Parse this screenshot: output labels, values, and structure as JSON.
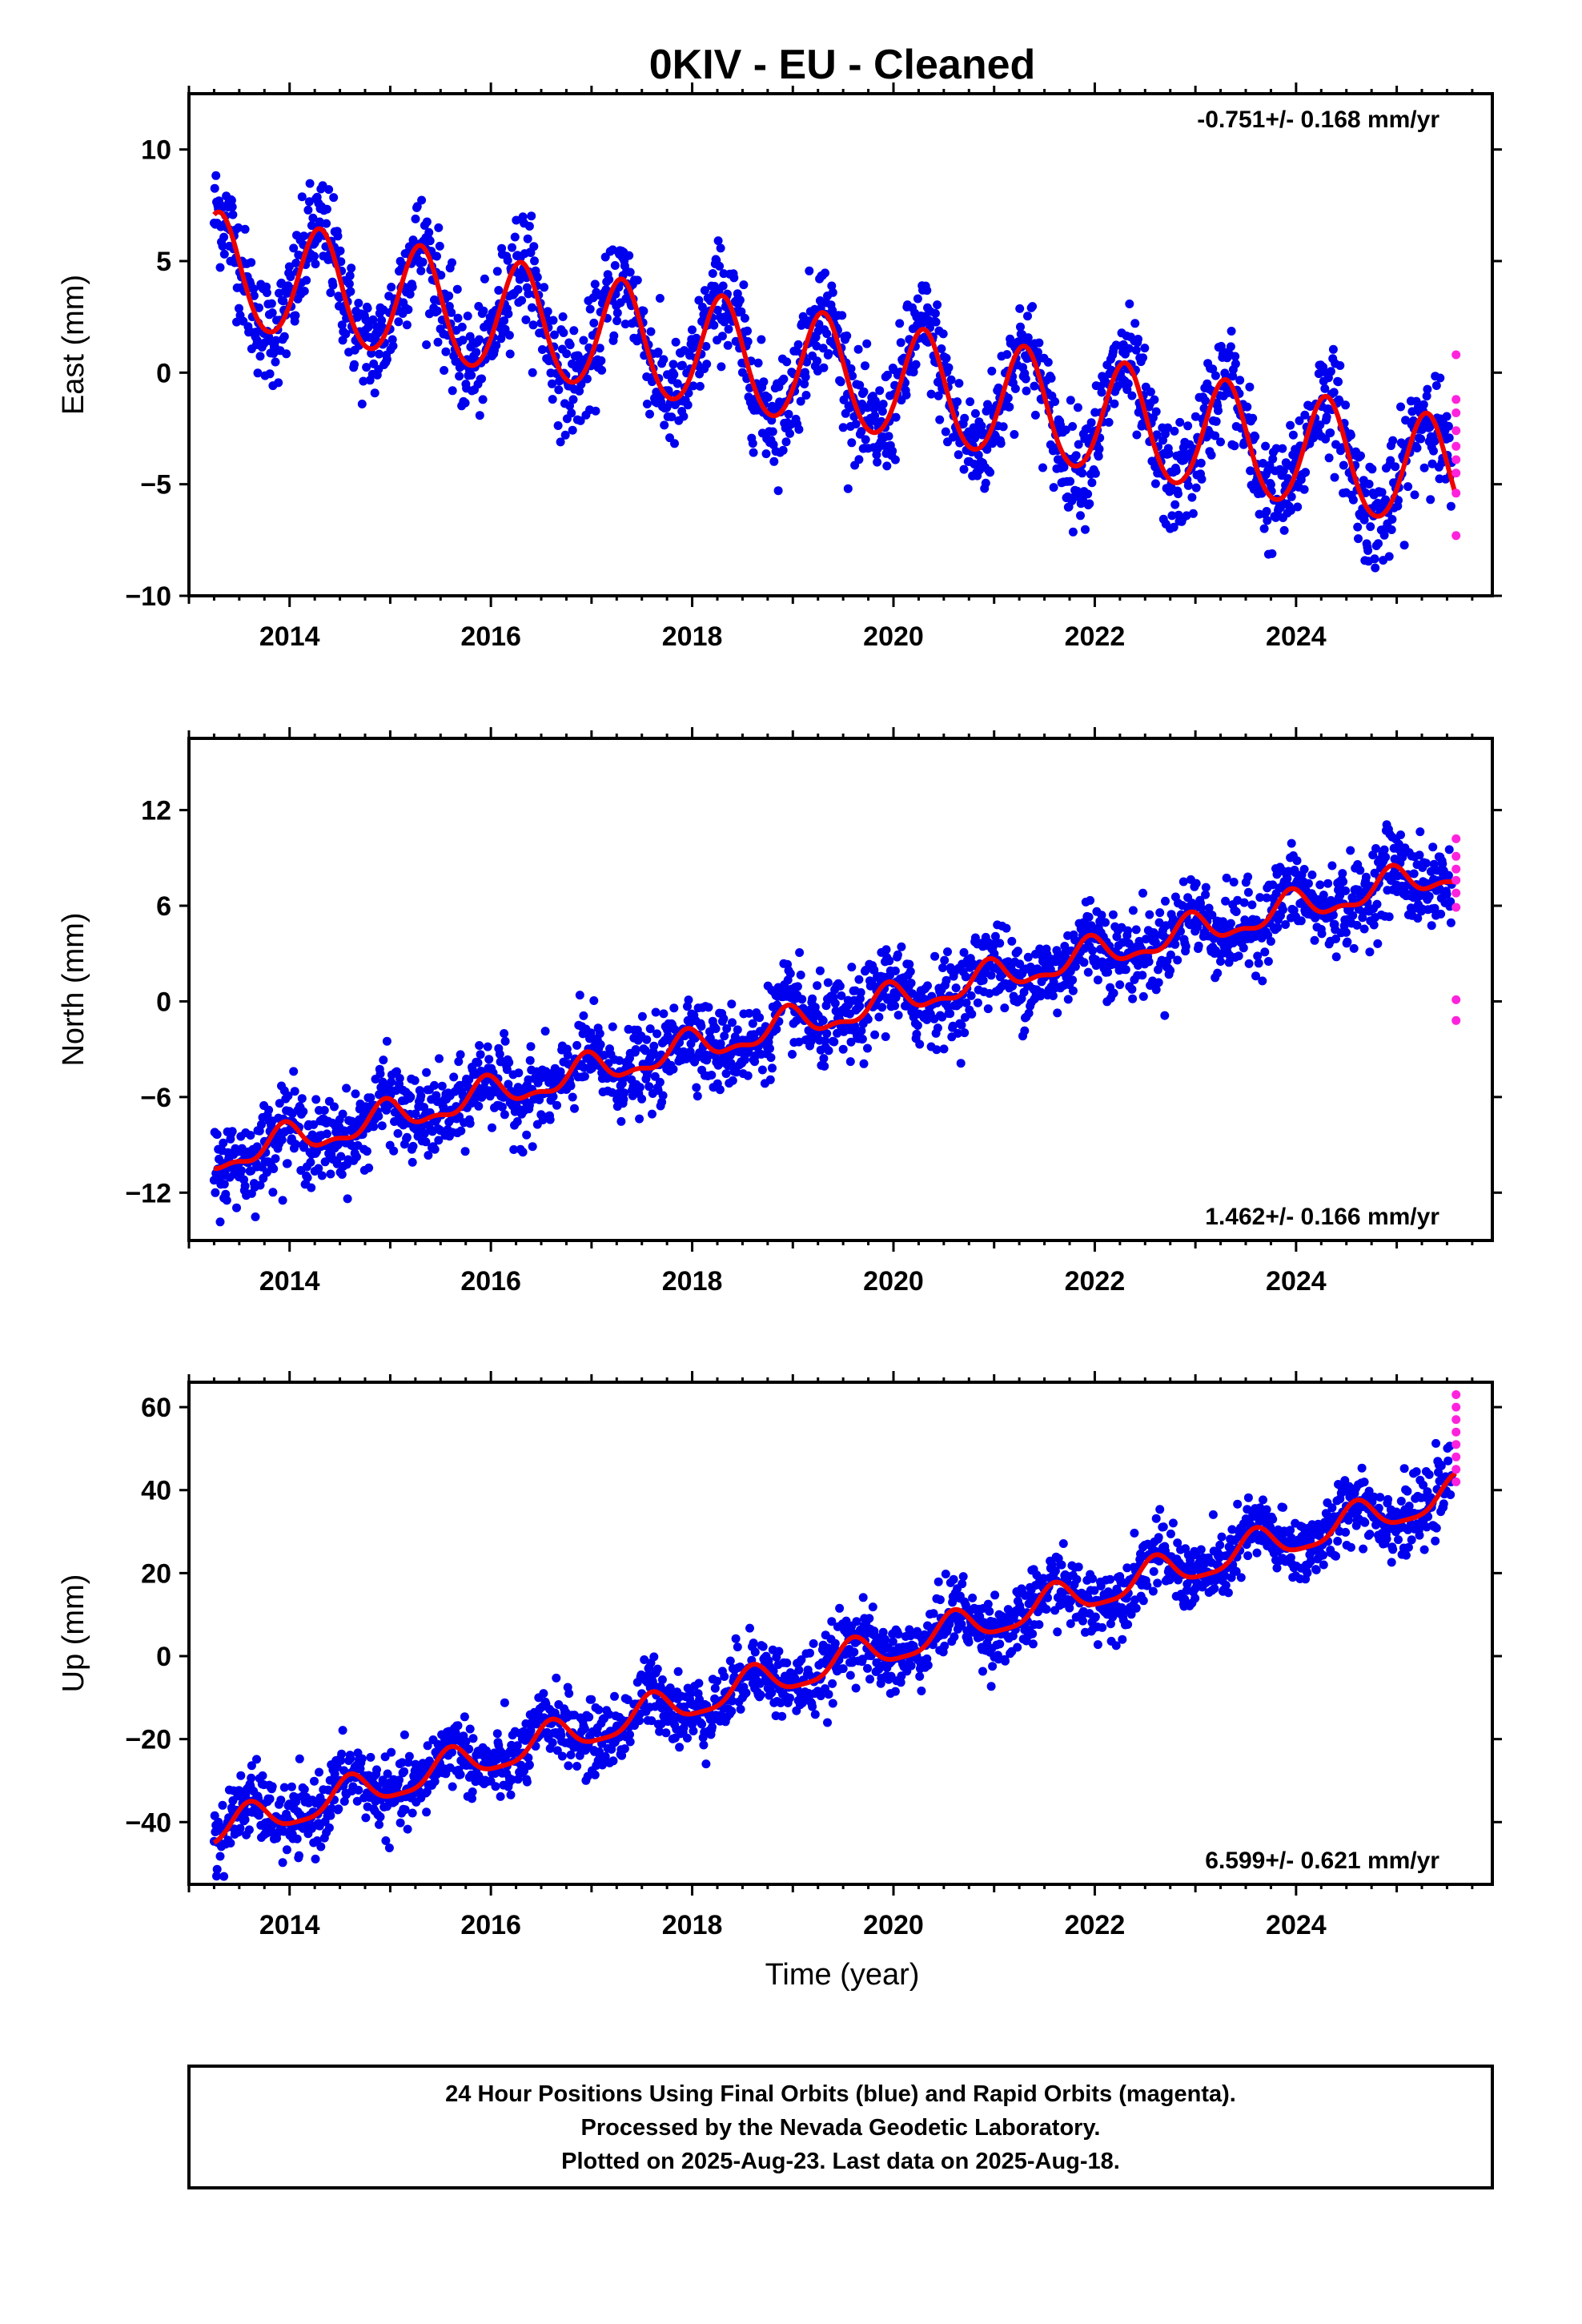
{
  "chart_data": {
    "type": "scatter",
    "title": "0KIV  - EU - Cleaned",
    "xlabel": "Time (year)",
    "xlim": [
      2013.0,
      2025.95
    ],
    "x_ticks": [
      2014,
      2016,
      2018,
      2020,
      2022,
      2024
    ],
    "colors": {
      "final": "#0000ee",
      "rapid": "#ff22dd",
      "model": "#ee0000"
    },
    "panels": [
      {
        "name": "east",
        "ylabel": "East (mm)",
        "ylim": [
          -10,
          12.5
        ],
        "y_ticks": [
          10,
          5,
          0,
          -5,
          -10
        ],
        "y_tick_labels": [
          "10",
          "5",
          "0",
          "−5",
          "−10"
        ],
        "rate": "-0.751+/- 0.168 mm/yr",
        "rate_position": "top-right",
        "trend": {
          "t0": 2013.3,
          "offset": 4.5,
          "slope_mm_per_yr": -0.751,
          "annual_amp": 2.5,
          "annual_phase_peak": 2013.3,
          "semiannual_amp": 0.2,
          "scatter_mm": 1.2
        },
        "final_range": [
          2013.25,
          2025.55
        ],
        "rapid_points": [
          [
            2025.59,
            0.8
          ],
          [
            2025.59,
            -1.2
          ],
          [
            2025.59,
            -1.8
          ],
          [
            2025.59,
            -2.6
          ],
          [
            2025.59,
            -3.3
          ],
          [
            2025.59,
            -3.9
          ],
          [
            2025.59,
            -4.5
          ],
          [
            2025.59,
            -5.4
          ],
          [
            2025.59,
            -7.3
          ]
        ]
      },
      {
        "name": "north",
        "ylabel": "North (mm)",
        "ylim": [
          -15,
          16.5
        ],
        "y_ticks": [
          12,
          6,
          0,
          -6,
          -12
        ],
        "y_tick_labels": [
          "12",
          "6",
          "0",
          "−6",
          "−12"
        ],
        "rate": "1.462+/- 0.166 mm/yr",
        "rate_position": "bottom-right",
        "trend": {
          "t0": 2013.3,
          "offset": -9.8,
          "slope_mm_per_yr": 1.462,
          "annual_amp": 0.9,
          "annual_phase_peak": 2013.95,
          "semiannual_amp": 0.4,
          "scatter_mm": 1.3
        },
        "final_range": [
          2013.25,
          2025.55
        ],
        "rapid_points": [
          [
            2025.59,
            10.2
          ],
          [
            2025.59,
            9.1
          ],
          [
            2025.59,
            8.3
          ],
          [
            2025.59,
            7.6
          ],
          [
            2025.59,
            6.8
          ],
          [
            2025.59,
            5.9
          ],
          [
            2025.59,
            0.1
          ],
          [
            2025.59,
            -1.2
          ]
        ]
      },
      {
        "name": "up",
        "ylabel": "Up (mm)",
        "ylim": [
          -55,
          66
        ],
        "y_ticks": [
          60,
          40,
          20,
          0,
          -20,
          -40
        ],
        "y_tick_labels": [
          "60",
          "40",
          "20",
          "0",
          "−20",
          "−40"
        ],
        "rate": "6.599+/- 0.621 mm/yr",
        "rate_position": "bottom-right",
        "trend": {
          "t0": 2013.3,
          "offset": -42,
          "slope_mm_per_yr": 6.599,
          "annual_amp": 4.0,
          "annual_phase_peak": 2013.6,
          "semiannual_amp": 1.0,
          "scatter_mm": 4.2
        },
        "final_range": [
          2013.25,
          2025.55
        ],
        "rapid_points": [
          [
            2025.59,
            63
          ],
          [
            2025.59,
            60
          ],
          [
            2025.59,
            57
          ],
          [
            2025.59,
            54
          ],
          [
            2025.59,
            51
          ],
          [
            2025.59,
            48
          ],
          [
            2025.59,
            45
          ],
          [
            2025.59,
            42
          ]
        ]
      }
    ]
  },
  "footer": {
    "line1": "24 Hour Positions Using Final Orbits (blue) and Rapid Orbits (magenta).",
    "line2": "Processed by the Nevada Geodetic Laboratory.",
    "line3": "Plotted on 2025-Aug-23. Last data on 2025-Aug-18."
  }
}
